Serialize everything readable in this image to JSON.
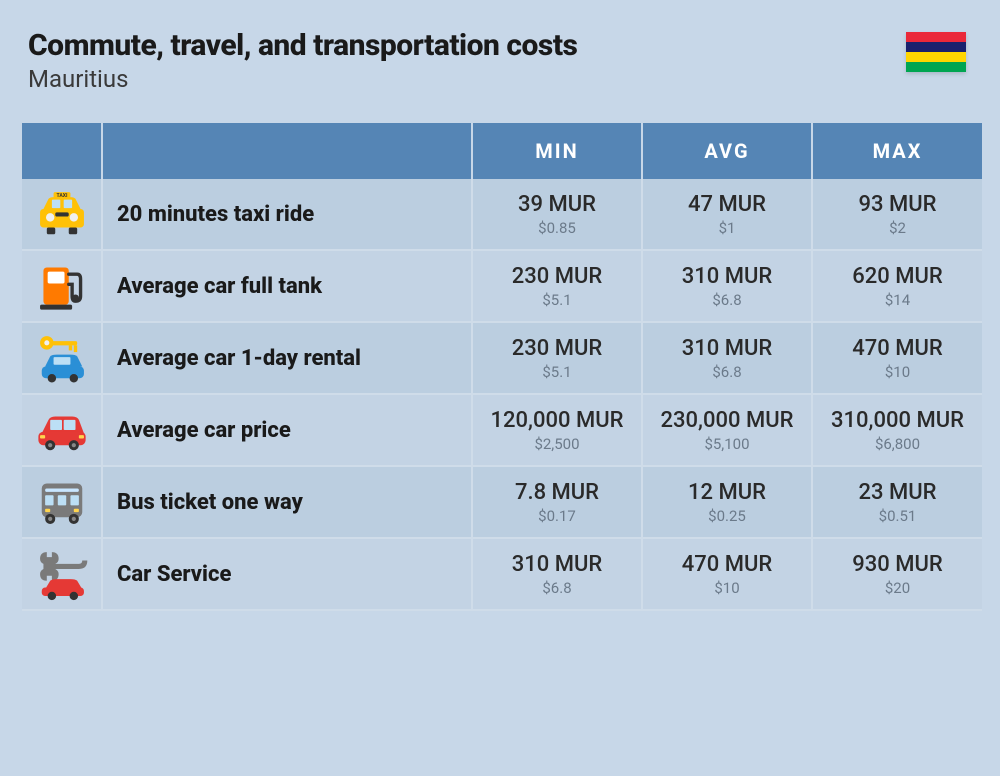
{
  "header": {
    "title": "Commute, travel, and transportation costs",
    "subtitle": "Mauritius"
  },
  "flag": {
    "stripes": [
      "#ea2839",
      "#1a206d",
      "#ffd500",
      "#00a551"
    ]
  },
  "table": {
    "header_bg": "#5585b5",
    "header_fg": "#ffffff",
    "row_alt_colors": [
      "#bbcee0",
      "#c3d3e4"
    ],
    "columns": [
      "MIN",
      "AVG",
      "MAX"
    ],
    "rows": [
      {
        "icon": "taxi",
        "label": "20 minutes taxi ride",
        "min": {
          "main": "39 MUR",
          "sub": "$0.85"
        },
        "avg": {
          "main": "47 MUR",
          "sub": "$1"
        },
        "max": {
          "main": "93 MUR",
          "sub": "$2"
        }
      },
      {
        "icon": "fuel",
        "label": "Average car full tank",
        "min": {
          "main": "230 MUR",
          "sub": "$5.1"
        },
        "avg": {
          "main": "310 MUR",
          "sub": "$6.8"
        },
        "max": {
          "main": "620 MUR",
          "sub": "$14"
        }
      },
      {
        "icon": "rental",
        "label": "Average car 1-day rental",
        "min": {
          "main": "230 MUR",
          "sub": "$5.1"
        },
        "avg": {
          "main": "310 MUR",
          "sub": "$6.8"
        },
        "max": {
          "main": "470 MUR",
          "sub": "$10"
        }
      },
      {
        "icon": "car",
        "label": "Average car price",
        "min": {
          "main": "120,000 MUR",
          "sub": "$2,500"
        },
        "avg": {
          "main": "230,000 MUR",
          "sub": "$5,100"
        },
        "max": {
          "main": "310,000 MUR",
          "sub": "$6,800"
        }
      },
      {
        "icon": "bus",
        "label": "Bus ticket one way",
        "min": {
          "main": "7.8 MUR",
          "sub": "$0.17"
        },
        "avg": {
          "main": "12 MUR",
          "sub": "$0.25"
        },
        "max": {
          "main": "23 MUR",
          "sub": "$0.51"
        }
      },
      {
        "icon": "service",
        "label": "Car Service",
        "min": {
          "main": "310 MUR",
          "sub": "$6.8"
        },
        "avg": {
          "main": "470 MUR",
          "sub": "$10"
        },
        "max": {
          "main": "930 MUR",
          "sub": "$20"
        }
      }
    ]
  },
  "icons": {
    "colors": {
      "taxi_body": "#ffc107",
      "fuel_body": "#ff7a00",
      "rental_key": "#ffc107",
      "rental_car": "#2a8fd6",
      "car_body": "#e53935",
      "bus_body": "#7a7a7a",
      "service_wrench": "#7a7a7a",
      "service_car": "#e53935",
      "dark": "#333333",
      "light": "#f0f0f0"
    }
  }
}
